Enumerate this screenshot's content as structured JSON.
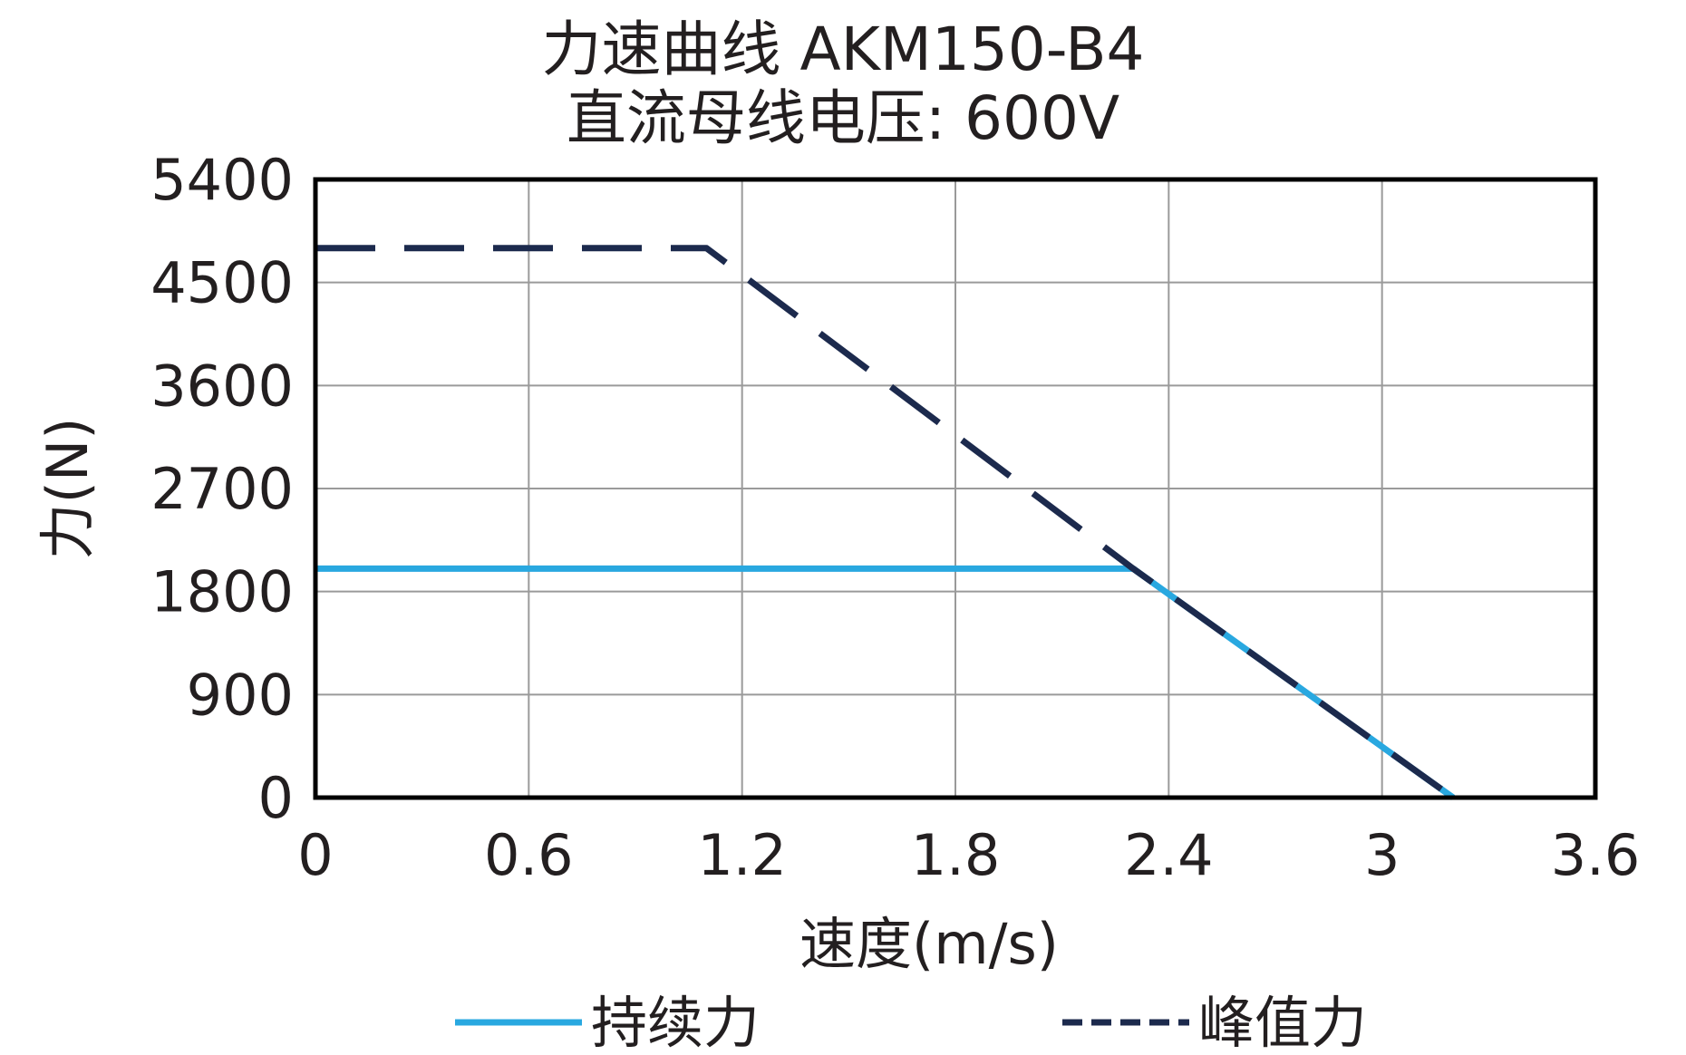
{
  "chart_data": {
    "type": "line",
    "title": "力速曲线 AKM150-B4",
    "subtitle": "直流母线电压: 600V",
    "xlabel": "速度(m/s)",
    "ylabel": "力(N)",
    "xlim": [
      0,
      3.6
    ],
    "ylim": [
      0,
      5400
    ],
    "xticks": [
      "0",
      "0.6",
      "1.2",
      "1.8",
      "2.4",
      "3",
      "3.6"
    ],
    "yticks": [
      "0",
      "900",
      "1800",
      "2700",
      "3600",
      "4500",
      "5400"
    ],
    "grid": true,
    "legend": "bottom",
    "series": [
      {
        "name": "持续力",
        "color": "#29a8e0",
        "style": "solid",
        "x": [
          0,
          2.3,
          3.2
        ],
        "y": [
          2000,
          2000,
          0
        ]
      },
      {
        "name": "峰值力",
        "color": "#1c2a4d",
        "style": "dashed",
        "x": [
          0,
          1.1,
          2.3,
          3.2
        ],
        "y": [
          4800,
          4800,
          2000,
          0
        ]
      }
    ]
  }
}
